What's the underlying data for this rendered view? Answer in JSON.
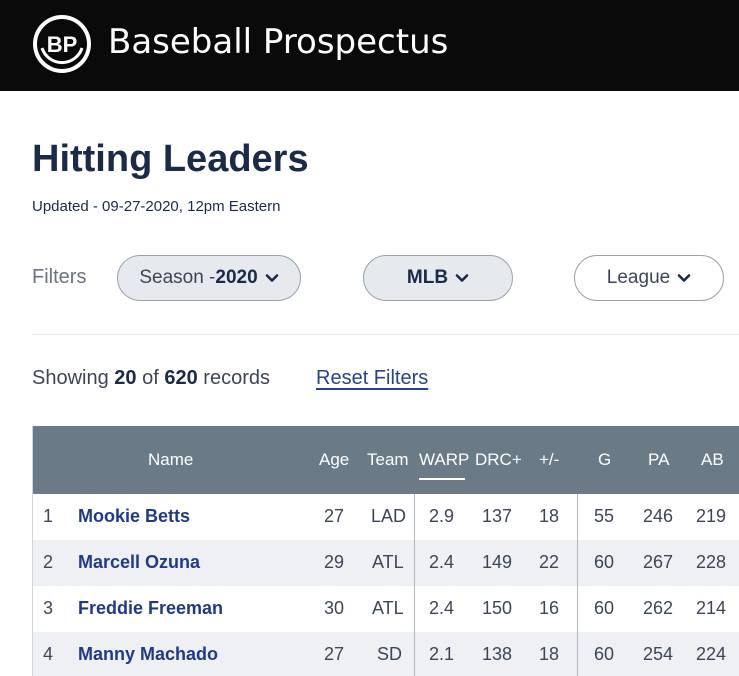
{
  "header": {
    "logo_text": "BP",
    "brand": "Baseball Prospectus"
  },
  "page": {
    "title": "Hitting Leaders",
    "updated": "Updated - 09-27-2020, 12pm Eastern"
  },
  "filters": {
    "label": "Filters",
    "season_prefix": "Season - ",
    "season_value": "2020",
    "level": "MLB",
    "league": "League"
  },
  "records": {
    "showing_word": "Showing",
    "count": "20",
    "of_word": "of",
    "total": "620",
    "records_word": "records",
    "reset_label": "Reset Filters"
  },
  "table": {
    "columns": [
      "Name",
      "Age",
      "Team",
      "WARP",
      "DRC+",
      "+/-",
      "G",
      "PA",
      "AB"
    ],
    "sorted_column": "WARP",
    "rows": [
      {
        "rank": "1",
        "name": "Mookie Betts",
        "age": "27",
        "team": "LAD",
        "warp": "2.9",
        "drc": "137",
        "pm": "18",
        "g": "55",
        "pa": "246",
        "ab": "219"
      },
      {
        "rank": "2",
        "name": "Marcell Ozuna",
        "age": "29",
        "team": "ATL",
        "warp": "2.4",
        "drc": "149",
        "pm": "22",
        "g": "60",
        "pa": "267",
        "ab": "228"
      },
      {
        "rank": "3",
        "name": "Freddie Freeman",
        "age": "30",
        "team": "ATL",
        "warp": "2.4",
        "drc": "150",
        "pm": "16",
        "g": "60",
        "pa": "262",
        "ab": "214"
      },
      {
        "rank": "4",
        "name": "Manny Machado",
        "age": "27",
        "team": "SD",
        "warp": "2.1",
        "drc": "138",
        "pm": "18",
        "g": "60",
        "pa": "254",
        "ab": "224"
      }
    ]
  },
  "colors": {
    "topbar": "#0a0a0a",
    "header_row": "#6b7a87",
    "link": "#1f3a8a",
    "title": "#1b2a48"
  }
}
